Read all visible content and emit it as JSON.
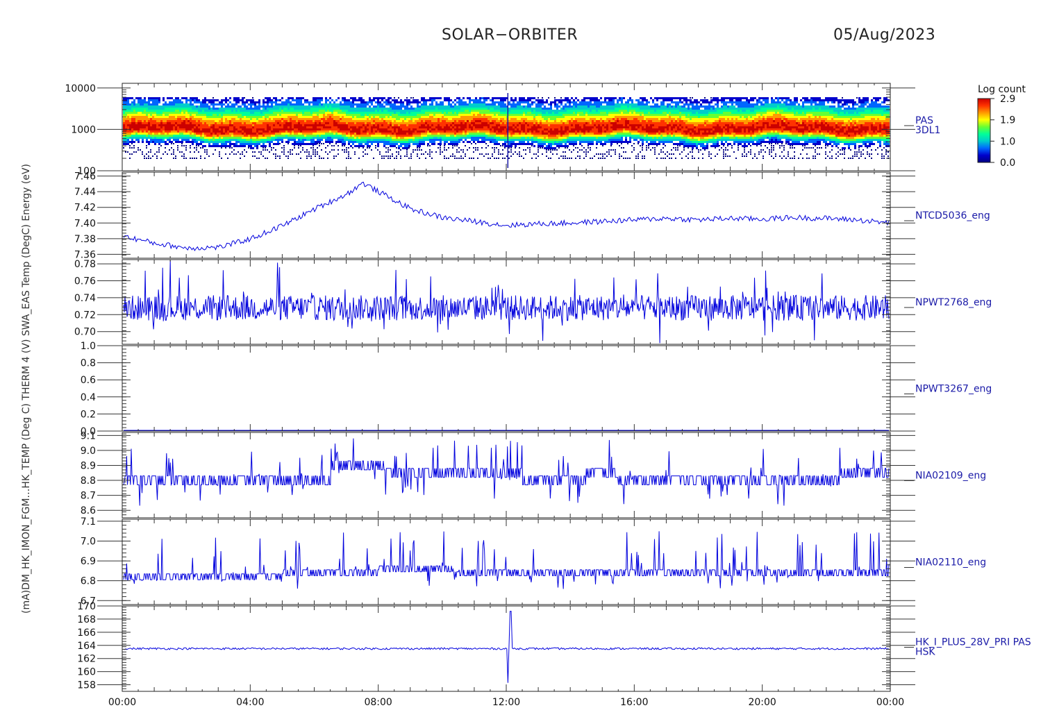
{
  "header": {
    "mission": "SOLAR−ORBITER",
    "date": "05/Aug/2023"
  },
  "left_axis_label": "(mA)DM_HK_IMON_FGM…HK_TEMP (Deg C) THERM 4 (V) SWA_EAS Temp (DegC) Energy (eV)",
  "colorbar": {
    "title": "Log count",
    "ticks": [
      "2.9",
      "1.9",
      "1.0",
      "0.0"
    ],
    "colors": [
      "#cc0000",
      "#ff3300",
      "#ff9900",
      "#ffff00",
      "#66ff33",
      "#00ff99",
      "#00cccc",
      "#0066ff",
      "#0000cc",
      "#000080"
    ]
  },
  "x_axis": {
    "ticks": [
      "00:00",
      "04:00",
      "08:00",
      "12:00",
      "16:00",
      "20:00",
      "00:00"
    ],
    "range_hours": [
      0,
      24
    ]
  },
  "chart_data": [
    {
      "type": "heatmap",
      "name": "PAS 3DL1",
      "label_lines": [
        "PAS",
        "3DL1"
      ],
      "ylabel": "Energy (eV)",
      "yscale": "log",
      "ylim": [
        100,
        13000
      ],
      "ytick_labels": [
        "10000",
        "1000",
        "100"
      ],
      "ytick_values": [
        10000,
        1000,
        100
      ],
      "peak_energy_eV": 1050
    },
    {
      "type": "line",
      "name": "NTCD5036_eng",
      "ylim": [
        7.355,
        7.465
      ],
      "ytick_labels": [
        "7.46",
        "7.44",
        "7.42",
        "7.40",
        "7.38",
        "7.36"
      ],
      "ytick_values": [
        7.46,
        7.44,
        7.42,
        7.4,
        7.38,
        7.36
      ],
      "x": [
        0,
        1,
        2,
        3,
        4,
        5,
        6,
        7,
        7.5,
        8,
        9,
        10,
        11,
        12,
        13,
        14,
        15,
        16,
        17,
        18,
        19,
        20,
        21,
        22,
        23,
        24
      ],
      "y": [
        7.383,
        7.374,
        7.368,
        7.369,
        7.38,
        7.397,
        7.418,
        7.437,
        7.451,
        7.44,
        7.418,
        7.407,
        7.402,
        7.397,
        7.399,
        7.4,
        7.402,
        7.404,
        7.406,
        7.404,
        7.406,
        7.405,
        7.407,
        7.406,
        7.404,
        7.4
      ]
    },
    {
      "type": "line",
      "name": "NPWT2768_eng",
      "ylim": [
        0.685,
        0.785
      ],
      "ytick_labels": [
        "0.78",
        "0.76",
        "0.74",
        "0.72",
        "0.70"
      ],
      "ytick_values": [
        0.78,
        0.76,
        0.74,
        0.72,
        0.7
      ],
      "mean": 0.728,
      "range": [
        0.695,
        0.781
      ]
    },
    {
      "type": "line",
      "name": "NPWT3267_eng",
      "ylim": [
        0.0,
        1.0
      ],
      "ytick_labels": [
        "1.0",
        "0.8",
        "0.6",
        "0.4",
        "0.2",
        "0.0"
      ],
      "ytick_values": [
        1.0,
        0.8,
        0.6,
        0.4,
        0.2,
        0.0
      ],
      "mean": 0.0
    },
    {
      "type": "line",
      "name": "NIA02109_eng",
      "ylim": [
        8.55,
        9.12
      ],
      "ytick_labels": [
        "9.1",
        "9.0",
        "8.9",
        "8.8",
        "8.7",
        "8.6"
      ],
      "ytick_values": [
        9.1,
        9.0,
        8.9,
        8.8,
        8.7,
        8.6
      ],
      "levels": [
        8.8,
        8.85,
        8.9
      ],
      "range": [
        8.58,
        9.08
      ]
    },
    {
      "type": "line",
      "name": "NIA02110_eng",
      "ylim": [
        6.68,
        7.11
      ],
      "ytick_labels": [
        "7.1",
        "7.0",
        "6.9",
        "6.8",
        "6.7"
      ],
      "ytick_values": [
        7.1,
        7.0,
        6.9,
        6.8,
        6.7
      ],
      "levels": [
        6.82,
        6.86
      ],
      "range": [
        6.7,
        7.06
      ]
    },
    {
      "type": "line",
      "name": "HK_I_PLUS_28V_PRI PAS HSK",
      "label_lines": [
        "HK_I_PLUS_28V_PRI PAS",
        "HSK"
      ],
      "ylim": [
        157,
        170
      ],
      "ytick_labels": [
        "170",
        "168",
        "166",
        "164",
        "162",
        "160",
        "158"
      ],
      "ytick_values": [
        170,
        168,
        166,
        164,
        162,
        160,
        158
      ],
      "mean": 163.5,
      "spike": {
        "x": 12.05,
        "min": 158.3,
        "max": 169.2
      }
    }
  ]
}
